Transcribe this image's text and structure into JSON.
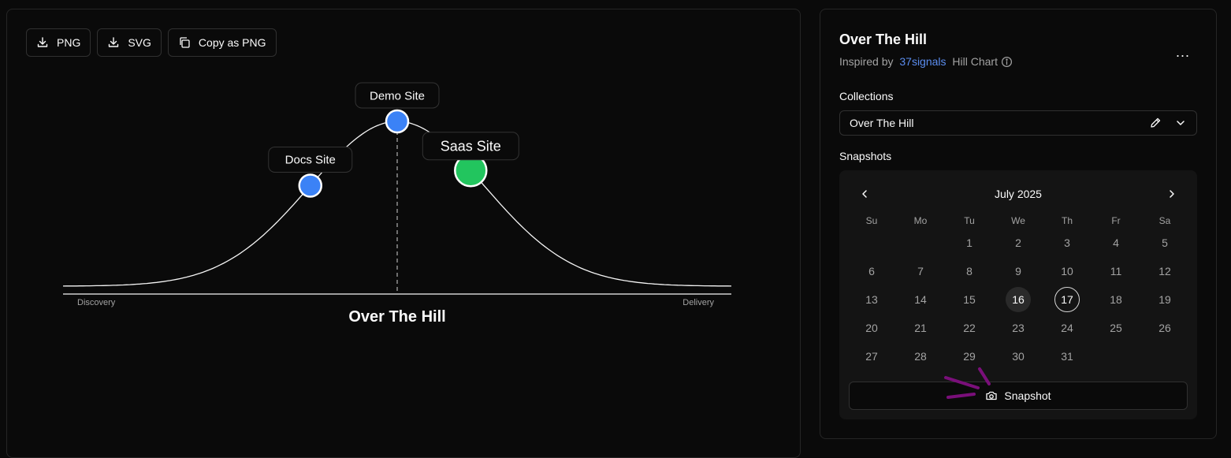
{
  "toolbar": {
    "png_label": "PNG",
    "svg_label": "SVG",
    "copy_label": "Copy as PNG"
  },
  "chart": {
    "title": "Over The Hill",
    "start_label": "Discovery",
    "end_label": "Delivery",
    "points": [
      {
        "label": "Docs Site",
        "progress": 37,
        "color": "#3b82f6",
        "size": "medium"
      },
      {
        "label": "Demo Site",
        "progress": 50,
        "color": "#3b82f6",
        "size": "medium"
      },
      {
        "label": "Saas Site",
        "progress": 61,
        "color": "#22c55e",
        "size": "large"
      }
    ]
  },
  "sidebar": {
    "title": "Over The Hill",
    "subtitle_prefix": "Inspired by ",
    "subtitle_link": "37signals",
    "subtitle_suffix": " Hill Chart",
    "more_label": "...",
    "collections_label": "Collections",
    "collection_value": "Over The Hill",
    "snapshots_label": "Snapshots"
  },
  "calendar": {
    "month": "July 2025",
    "weekdays": [
      "Su",
      "Mo",
      "Tu",
      "We",
      "Th",
      "Fr",
      "Sa"
    ],
    "weeks": [
      [
        "",
        "",
        "1",
        "2",
        "3",
        "4",
        "5"
      ],
      [
        "6",
        "7",
        "8",
        "9",
        "10",
        "11",
        "12"
      ],
      [
        "13",
        "14",
        "15",
        "16",
        "17",
        "18",
        "19"
      ],
      [
        "20",
        "21",
        "22",
        "23",
        "24",
        "25",
        "26"
      ],
      [
        "27",
        "28",
        "29",
        "30",
        "31",
        "",
        ""
      ]
    ],
    "highlighted_day": "16",
    "selected_day": "17"
  },
  "snapshot_button": "Snapshot"
}
